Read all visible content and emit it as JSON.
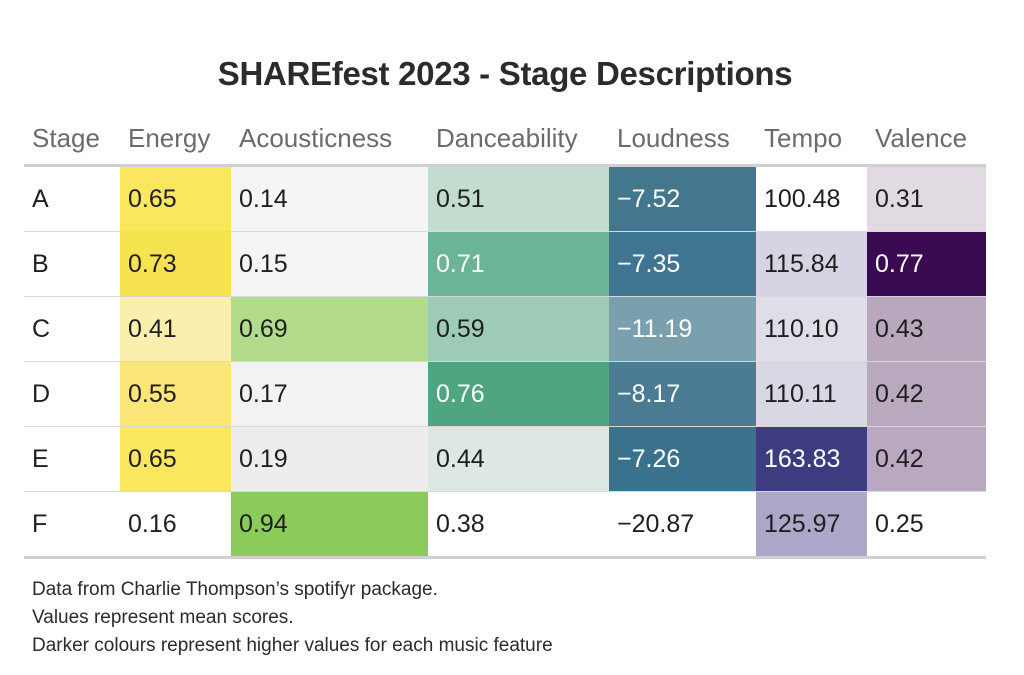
{
  "chart_data": {
    "type": "table",
    "title": "SHAREfest 2023 - Stage Descriptions",
    "columns": [
      "Stage",
      "Energy",
      "Acousticness",
      "Danceability",
      "Loudness",
      "Tempo",
      "Valence"
    ],
    "rows": [
      {
        "stage": "A",
        "values": [
          "0.65",
          "0.14",
          "0.51",
          "−7.52",
          "100.48",
          "0.31"
        ]
      },
      {
        "stage": "B",
        "values": [
          "0.73",
          "0.15",
          "0.71",
          "−7.35",
          "115.84",
          "0.77"
        ]
      },
      {
        "stage": "C",
        "values": [
          "0.41",
          "0.69",
          "0.59",
          "−11.19",
          "110.10",
          "0.43"
        ]
      },
      {
        "stage": "D",
        "values": [
          "0.55",
          "0.17",
          "0.76",
          "−8.17",
          "110.11",
          "0.42"
        ]
      },
      {
        "stage": "E",
        "values": [
          "0.65",
          "0.19",
          "0.44",
          "−7.26",
          "163.83",
          "0.42"
        ]
      },
      {
        "stage": "F",
        "values": [
          "0.16",
          "0.94",
          "0.38",
          "−20.87",
          "125.97",
          "0.25"
        ]
      }
    ],
    "cell_colors": [
      [
        "#fbe660",
        "#f5f5f5",
        "#c2ddd0",
        "#43778d",
        "#ffffff",
        "#e2dae2"
      ],
      [
        "#f7e350",
        "#f4f4f4",
        "#6bb495",
        "#407592",
        "#d6d3e2",
        "#3a0b52"
      ],
      [
        "#fbefb0",
        "#b2dc8c",
        "#9ecbb5",
        "#7aa0ae",
        "#e0dde8",
        "#b8a7bd"
      ],
      [
        "#fbe677",
        "#f2f2f2",
        "#4fa57f",
        "#4a7b92",
        "#dad7e5",
        "#b8a9bf"
      ],
      [
        "#fbe660",
        "#ededed",
        "#dce8e1",
        "#3a728d",
        "#3e3c80",
        "#baa8c0"
      ],
      [
        "#ffffff",
        "#8acb5a",
        "#ffffff",
        "#ffffff",
        "#aaa7c9",
        "#ffffff"
      ]
    ],
    "light_text": [
      [
        false,
        false,
        false,
        true,
        false,
        false
      ],
      [
        false,
        false,
        true,
        true,
        false,
        true
      ],
      [
        false,
        false,
        false,
        true,
        false,
        false
      ],
      [
        false,
        false,
        true,
        true,
        false,
        false
      ],
      [
        false,
        false,
        false,
        true,
        true,
        false
      ],
      [
        false,
        false,
        false,
        false,
        false,
        false
      ]
    ]
  },
  "caption": [
    "Data from Charlie Thompson’s spotifyr package.",
    "Values represent mean scores.",
    "Darker colours represent higher values for each music feature"
  ]
}
